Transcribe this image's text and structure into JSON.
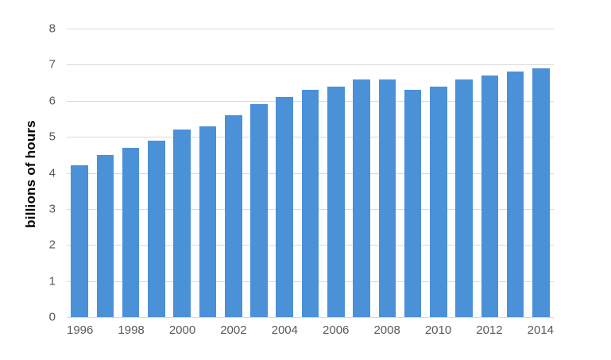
{
  "chart_data": {
    "type": "bar",
    "title": "",
    "xlabel": "",
    "ylabel": "billions of hours",
    "categories": [
      "1996",
      "1997",
      "1998",
      "1999",
      "2000",
      "2001",
      "2002",
      "2003",
      "2004",
      "2005",
      "2006",
      "2007",
      "2008",
      "2009",
      "2010",
      "2011",
      "2012",
      "2013",
      "2014"
    ],
    "values": [
      4.2,
      4.5,
      4.7,
      4.9,
      5.2,
      5.3,
      5.6,
      5.9,
      6.1,
      6.3,
      6.4,
      6.6,
      6.6,
      6.3,
      6.4,
      6.6,
      6.7,
      6.8,
      6.9
    ],
    "ylim": [
      0,
      8
    ],
    "yticks": [
      0,
      1,
      2,
      3,
      4,
      5,
      6,
      7,
      8
    ],
    "xtick_labels": [
      "1996",
      "1998",
      "2000",
      "2002",
      "2004",
      "2006",
      "2008",
      "2010",
      "2012",
      "2014"
    ],
    "xtick_label_every": 2,
    "grid": true,
    "legend_position": "none",
    "colors": {
      "bar": "#4a91d8",
      "gridline": "#d9d9d9",
      "tick_label": "#595959",
      "axis_title": "#000000",
      "background": "#ffffff"
    }
  }
}
